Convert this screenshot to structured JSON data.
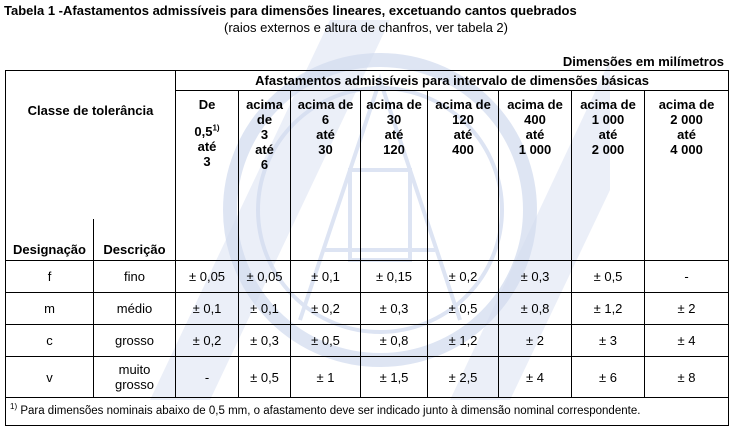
{
  "title": "Tabela 1 -Afastamentos admissíveis  para dimensões lineares, excetuando cantos quebrados",
  "subtitle": "(raios externos e altura de chanfros, ver tabela 2)",
  "units": "Dimensões em  milímetros",
  "header": {
    "main": "Afastamentos admissíveis  para intervalo de dimensões básicas",
    "classe": "Classe de tolerância",
    "designacao": "Designação",
    "descricao": "Descrição",
    "ranges": [
      {
        "l1": "De",
        "l2": "0,5",
        "sup": "1)",
        "l3": "até",
        "l4": "3"
      },
      {
        "l1": "acima",
        "l2": "de",
        "l3": "3",
        "l4": "até",
        "l5": "6"
      },
      {
        "l1": "acima de",
        "l2": "6",
        "l3": "até",
        "l4": "30"
      },
      {
        "l1": "acima de",
        "l2": "30",
        "l3": "até",
        "l4": "120"
      },
      {
        "l1": "acima de",
        "l2": "120",
        "l3": "até",
        "l4": "400"
      },
      {
        "l1": "acima de",
        "l2": "400",
        "l3": "até",
        "l4": "1 000"
      },
      {
        "l1": "acima de",
        "l2": "1 000",
        "l3": "até",
        "l4": "2 000"
      },
      {
        "l1": "acima de",
        "l2": "2 000",
        "l3": "até",
        "l4": "4 000"
      }
    ]
  },
  "rows": [
    {
      "designacao": "f",
      "descricao": "fino",
      "values": [
        "± 0,05",
        "± 0,05",
        "± 0,1",
        "± 0,15",
        "± 0,2",
        "± 0,3",
        "± 0,5",
        "-"
      ]
    },
    {
      "designacao": "m",
      "descricao": "médio",
      "values": [
        "± 0,1",
        "± 0,1",
        "± 0,2",
        "± 0,3",
        "± 0,5",
        "± 0,8",
        "± 1,2",
        "± 2"
      ]
    },
    {
      "designacao": "c",
      "descricao": "grosso",
      "values": [
        "± 0,2",
        "± 0,3",
        "± 0,5",
        "± 0,8",
        "± 1,2",
        "± 2",
        "± 3",
        "± 4"
      ]
    },
    {
      "designacao": "v",
      "descricao_l1": "muito",
      "descricao_l2": "grosso",
      "values": [
        "-",
        "± 0,5",
        "± 1",
        "± 1,5",
        "± 2,5",
        "± 4",
        "± 6",
        "± 8"
      ]
    }
  ],
  "footnote": {
    "mark": "1)",
    "text": " Para dimensões nominais abaixo de 0,5 mm, o afastamento deve ser indicado junto à dimensão nominal correspondente."
  },
  "colors": {
    "watermark": "#b9c7e6",
    "border": "#000000"
  }
}
